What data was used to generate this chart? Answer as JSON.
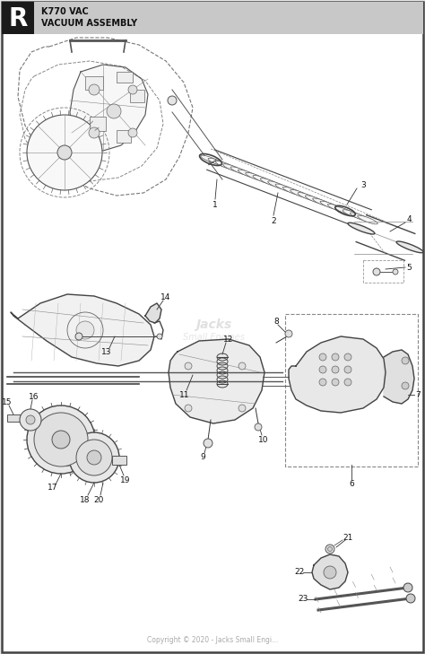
{
  "title_letter": "R",
  "title_line1": "K770 VAC",
  "title_line2": "VACUUM ASSEMBLY",
  "bg_color": "#e8e8e8",
  "border_color": "#444444",
  "diagram_bg": "#ffffff",
  "copyright": "Copyright © 2020 - Jacks Small Engi...",
  "header_gray": "#c8c8c8",
  "r_box_color": "#1a1a1a",
  "line_color": "#333333",
  "part_label_color": "#111111",
  "dashed_box_color": "#888888",
  "part_fill": "#f2f2f2",
  "part_stroke": "#444444"
}
